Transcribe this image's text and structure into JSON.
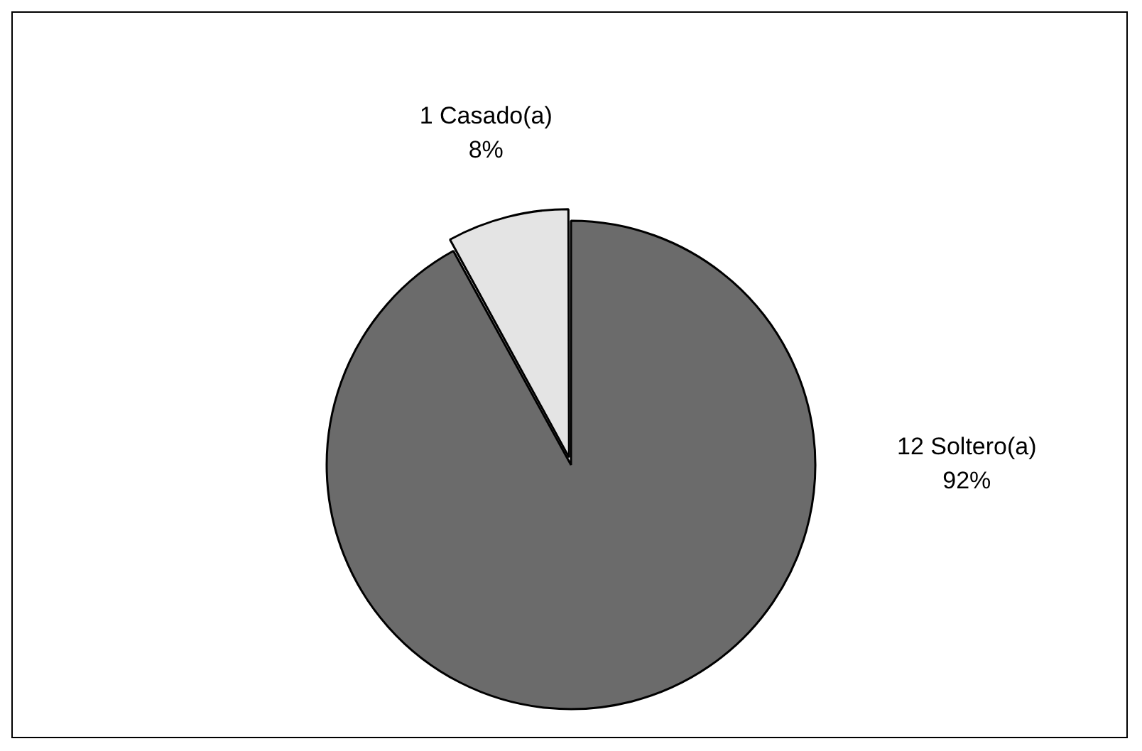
{
  "chart_data": {
    "type": "pie",
    "categories": [
      "12 Soltero(a)",
      "1 Casado(a)"
    ],
    "values": [
      92,
      8
    ],
    "value_labels": [
      "92%",
      "8%"
    ],
    "colors": [
      "#6b6b6b",
      "#e4e4e4"
    ],
    "legend": false
  }
}
